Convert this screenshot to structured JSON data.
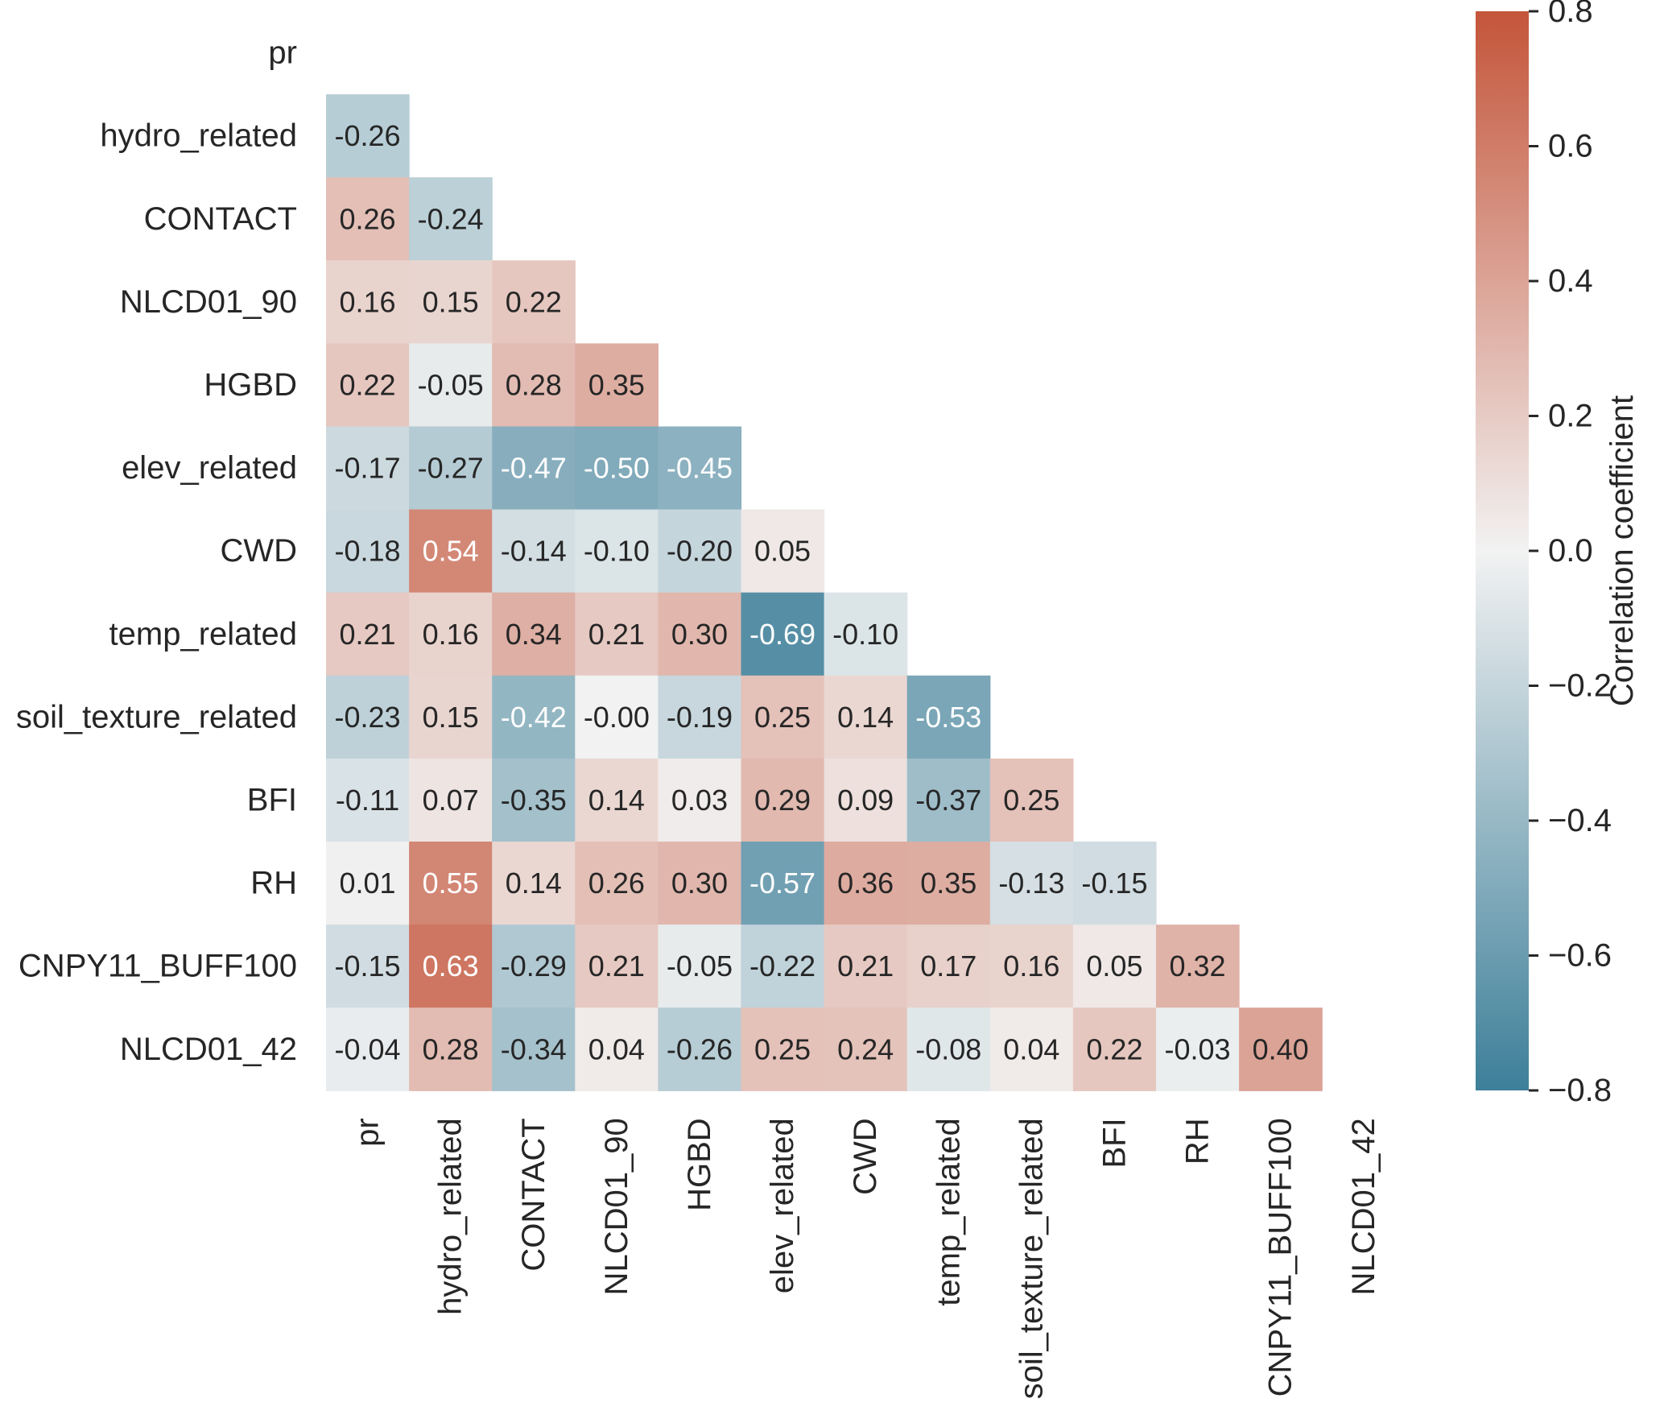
{
  "chart_data": {
    "type": "heatmap",
    "variables": [
      "pr",
      "hydro_related",
      "CONTACT",
      "NLCD01_90",
      "HGBD",
      "elev_related",
      "CWD",
      "temp_related",
      "soil_texture_related",
      "BFI",
      "RH",
      "CNPY11_BUFF100",
      "NLCD01_42"
    ],
    "matrix_lower": [
      [],
      [
        "-0.26"
      ],
      [
        "0.26",
        "-0.24"
      ],
      [
        "0.16",
        "0.15",
        "0.22"
      ],
      [
        "0.22",
        "-0.05",
        "0.28",
        "0.35"
      ],
      [
        "-0.17",
        "-0.27",
        "-0.47",
        "-0.50",
        "-0.45"
      ],
      [
        "-0.18",
        "0.54",
        "-0.14",
        "-0.10",
        "-0.20",
        "0.05"
      ],
      [
        "0.21",
        "0.16",
        "0.34",
        "0.21",
        "0.30",
        "-0.69",
        "-0.10"
      ],
      [
        "-0.23",
        "0.15",
        "-0.42",
        "-0.00",
        "-0.19",
        "0.25",
        "0.14",
        "-0.53"
      ],
      [
        "-0.11",
        "0.07",
        "-0.35",
        "0.14",
        "0.03",
        "0.29",
        "0.09",
        "-0.37",
        "0.25"
      ],
      [
        "0.01",
        "0.55",
        "0.14",
        "0.26",
        "0.30",
        "-0.57",
        "0.36",
        "0.35",
        "-0.13",
        "-0.15"
      ],
      [
        "-0.15",
        "0.63",
        "-0.29",
        "0.21",
        "-0.05",
        "-0.22",
        "0.21",
        "0.17",
        "0.16",
        "0.05",
        "0.32"
      ],
      [
        "-0.04",
        "0.28",
        "-0.34",
        "0.04",
        "-0.26",
        "0.25",
        "0.24",
        "-0.08",
        "0.04",
        "0.22",
        "-0.03",
        "0.40"
      ]
    ],
    "mask": "upper-triangle-including-diagonal",
    "colorbar": {
      "label": "Correlation coefficient",
      "vmin": -0.8,
      "vmax": 0.8,
      "ticks": [
        "0.8",
        "0.6",
        "0.4",
        "0.2",
        "0.0",
        "−0.2",
        "−0.4",
        "−0.6",
        "−0.8"
      ],
      "low_color": "#3d7f99",
      "mid_color": "#f2f2f2",
      "high_color": "#c4553a"
    },
    "annotation_text_dark": "#262626",
    "annotation_text_light": "#ffffff"
  }
}
